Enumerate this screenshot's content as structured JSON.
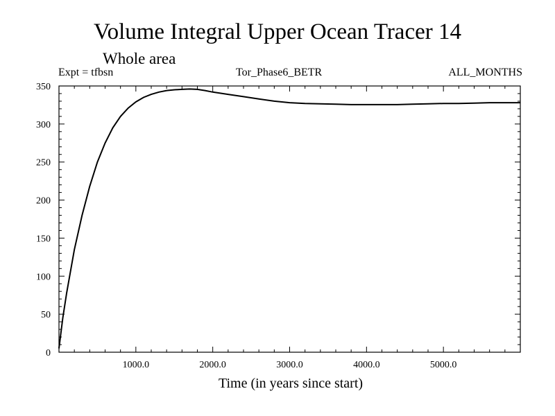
{
  "chart_data": {
    "type": "line",
    "title": "Volume Integral Upper Ocean Tracer 14",
    "subtitle": "Whole area",
    "expt_label": "Expt = tfbsn",
    "run_label": "Tor_Phase6_BETR",
    "months_label": "ALL_MONTHS",
    "xlabel": "Time (in years since start)",
    "ylabel": "",
    "xlim": [
      0,
      6000
    ],
    "ylim": [
      0,
      350
    ],
    "x_ticks": [
      1000,
      2000,
      3000,
      4000,
      5000
    ],
    "x_tick_labels": [
      "1000.0",
      "2000.0",
      "3000.0",
      "4000.0",
      "5000.0"
    ],
    "y_ticks": [
      0,
      50,
      100,
      150,
      200,
      250,
      300,
      350
    ],
    "y_tick_labels": [
      "0",
      "50",
      "100",
      "150",
      "200",
      "250",
      "300",
      "350"
    ],
    "series": [
      {
        "name": "Upper Ocean Tracer 14",
        "x": [
          0,
          50,
          100,
          200,
          300,
          400,
          500,
          600,
          700,
          800,
          900,
          1000,
          1100,
          1200,
          1300,
          1400,
          1500,
          1600,
          1700,
          1800,
          1900,
          2000,
          2200,
          2400,
          2600,
          2800,
          3000,
          3200,
          3400,
          3600,
          3800,
          4000,
          4200,
          4400,
          4600,
          4800,
          5000,
          5200,
          5400,
          5600,
          5800,
          6000
        ],
        "values": [
          5,
          45,
          78,
          135,
          180,
          218,
          250,
          275,
          295,
          310,
          321,
          329,
          335,
          339,
          342,
          344,
          345,
          345.5,
          346,
          345.5,
          344,
          342,
          339,
          336,
          333,
          330,
          328,
          327,
          326.5,
          326,
          325.5,
          325.5,
          325.5,
          325.5,
          326,
          326.5,
          327,
          327,
          327.5,
          328,
          328,
          328
        ]
      }
    ]
  }
}
